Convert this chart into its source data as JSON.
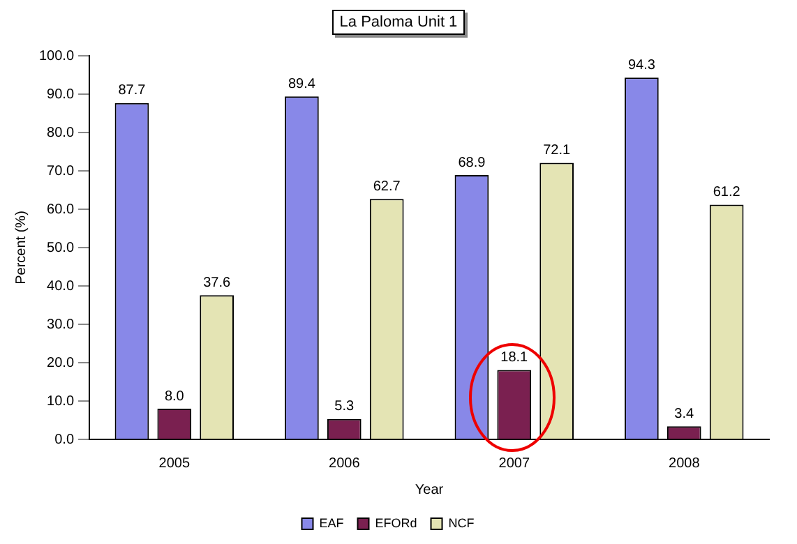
{
  "chart_data": {
    "type": "bar",
    "title": "La Paloma Unit 1",
    "xlabel": "Year",
    "ylabel": "Percent (%)",
    "categories": [
      "2005",
      "2006",
      "2007",
      "2008"
    ],
    "series": [
      {
        "name": "EAF",
        "color": "#8888e8",
        "values": [
          87.7,
          89.4,
          68.9,
          94.3
        ],
        "value_labels": [
          "87.7",
          "89.4",
          "68.9",
          "94.3"
        ]
      },
      {
        "name": "EFORd",
        "color": "#7a2050",
        "values": [
          8.0,
          5.3,
          18.1,
          3.4
        ],
        "value_labels": [
          "8.0",
          "5.3",
          "18.1",
          "3.4"
        ]
      },
      {
        "name": "NCF",
        "color": "#e4e4b4",
        "values": [
          37.6,
          62.7,
          72.1,
          61.2
        ],
        "value_labels": [
          "37.6",
          "62.7",
          "72.1",
          "61.2"
        ]
      }
    ],
    "ylim": [
      0,
      100
    ],
    "yticks": [
      {
        "value": 0,
        "label": "0.0"
      },
      {
        "value": 10,
        "label": "10.0"
      },
      {
        "value": 20,
        "label": "20.0"
      },
      {
        "value": 30,
        "label": "30.0"
      },
      {
        "value": 40,
        "label": "40.0"
      },
      {
        "value": 50,
        "label": "50.0"
      },
      {
        "value": 60,
        "label": "60.0"
      },
      {
        "value": 70,
        "label": "70.0"
      },
      {
        "value": 80,
        "label": "80.0"
      },
      {
        "value": 90,
        "label": "90.0"
      },
      {
        "value": 100,
        "label": "100.0"
      }
    ],
    "grid": false,
    "legend": "bottom"
  }
}
